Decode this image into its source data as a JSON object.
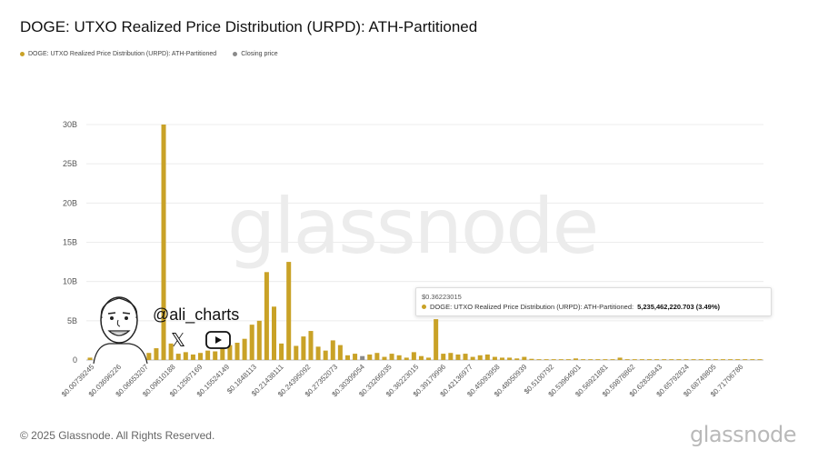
{
  "title": "DOGE: UTXO Realized Price Distribution (URPD): ATH-Partitioned",
  "legend": [
    {
      "label": "DOGE: UTXO Realized Price Distribution (URPD): ATH-Partitioned",
      "color": "#c9a227"
    },
    {
      "label": "Closing price",
      "color": "#8a8a8a"
    }
  ],
  "watermark": "glassnode",
  "footer": "© 2025 Glassnode. All Rights Reserved.",
  "brand": "glassnode",
  "overlay": {
    "handle": "@ali_charts",
    "x_icon": "𝕏"
  },
  "tooltip": {
    "date": "$0.36223015",
    "series": "DOGE: UTXO Realized Price Distribution (URPD): ATH-Partitioned:",
    "value": "5,235,462,220.703 (3.49%)"
  },
  "chart_data": {
    "type": "bar",
    "bar_color": "#c9a227",
    "highlight_color": "#8a8a8a",
    "closing_price_index": 37,
    "y_ticks": [
      "0",
      "5B",
      "10B",
      "15B",
      "20B",
      "25B",
      "30B"
    ],
    "ylim": [
      0,
      30000000000
    ],
    "x_tick_labels": [
      "$0.00739245",
      "$0.03696226",
      "$0.06653207",
      "$0.09610188",
      "$0.12567169",
      "$0.15524149",
      "$0.1848113",
      "$0.21438111",
      "$0.24395092",
      "$0.27352073",
      "$0.30309054",
      "$0.33266035",
      "$0.36223015",
      "$0.39179996",
      "$0.42136977",
      "$0.45093958",
      "$0.48050939",
      "$0.5100792",
      "$0.53964901",
      "$0.56921881",
      "$0.59878862",
      "$0.62835843",
      "$0.65792824",
      "$0.68749805",
      "$0.71706786"
    ],
    "values_billions": [
      0.3,
      0.5,
      0.9,
      0.2,
      0.4,
      0.6,
      0.5,
      0.8,
      0.9,
      1.5,
      30.0,
      2.1,
      0.8,
      1.0,
      0.7,
      0.9,
      1.2,
      1.1,
      1.5,
      1.9,
      2.2,
      2.7,
      4.5,
      5.0,
      11.2,
      6.8,
      2.1,
      12.5,
      1.8,
      3.0,
      3.7,
      1.7,
      1.2,
      2.5,
      1.9,
      0.6,
      0.8,
      0.5,
      0.7,
      0.9,
      0.4,
      0.8,
      0.6,
      0.3,
      1.0,
      0.5,
      0.3,
      5.2,
      0.8,
      0.9,
      0.7,
      0.8,
      0.4,
      0.6,
      0.7,
      0.4,
      0.3,
      0.3,
      0.2,
      0.4,
      0.15,
      0.1,
      0.1,
      0.1,
      0.1,
      0.1,
      0.2,
      0.1,
      0.1,
      0.1,
      0.1,
      0.1,
      0.3,
      0.1,
      0.1,
      0.1,
      0.1,
      0.1,
      0.1,
      0.1,
      0.1,
      0.1,
      0.1,
      0.1,
      0.1,
      0.1,
      0.1,
      0.1,
      0.1,
      0.1,
      0.1,
      0.1
    ]
  }
}
